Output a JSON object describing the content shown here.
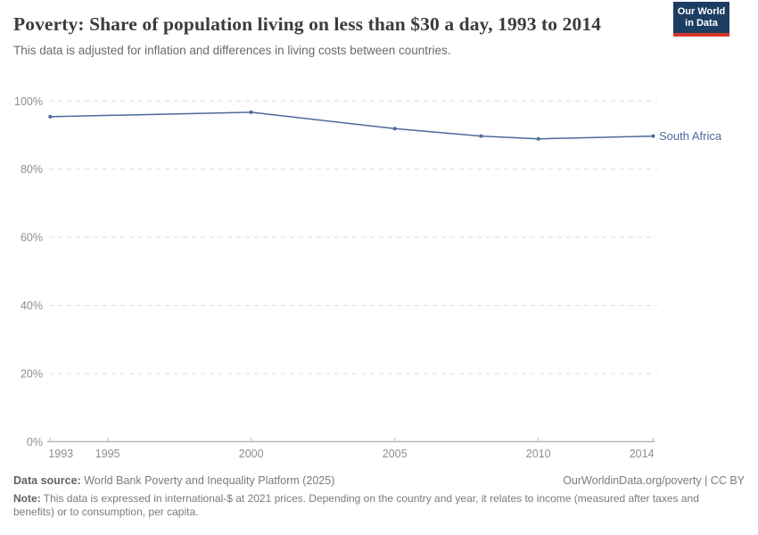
{
  "header": {
    "title": "Poverty: Share of population living on less than $30 a day, 1993 to 2014",
    "subtitle": "This data is adjusted for inflation and differences in living costs between countries.",
    "logo": {
      "line1": "Our World",
      "line2": "in Data"
    }
  },
  "chart_data": {
    "type": "line",
    "title": "Poverty: Share of population living on less than $30 a day, 1993 to 2014",
    "series": [
      {
        "name": "South Africa",
        "color": "#4C6A9C",
        "points": [
          {
            "x": 1993,
            "y": 95.4
          },
          {
            "x": 2000,
            "y": 96.7
          },
          {
            "x": 2005,
            "y": 91.9
          },
          {
            "x": 2008,
            "y": 89.7
          },
          {
            "x": 2010,
            "y": 88.9
          },
          {
            "x": 2014,
            "y": 89.7
          }
        ]
      }
    ],
    "x_ticks": [
      1993,
      1995,
      2000,
      2005,
      2010,
      2014
    ],
    "y_ticks": [
      0,
      20,
      40,
      60,
      80,
      100
    ],
    "y_tick_suffix": "%",
    "xlim": [
      1993,
      2014
    ],
    "ylim": [
      0,
      100
    ],
    "grid": "dashed horizontal gridlines",
    "legend": "line-end label"
  },
  "footer": {
    "source_label": "Data source:",
    "source_text": "World Bank Poverty and Inequality Platform (2025)",
    "rights": "OurWorldinData.org/poverty | CC BY",
    "note_label": "Note:",
    "note_text": "This data is expressed in international-$ at 2021 prices. Depending on the country and year, it relates to income (measured after taxes and benefits) or to consumption, per capita."
  },
  "colors": {
    "line": "#4C6A9C",
    "logo_bg": "#1D3D63",
    "logo_bar": "#D8352A",
    "grid": "#DDDDDD",
    "axis": "#999999",
    "tick": "#BBBBBB",
    "axis_label": "#8E8E8E"
  }
}
